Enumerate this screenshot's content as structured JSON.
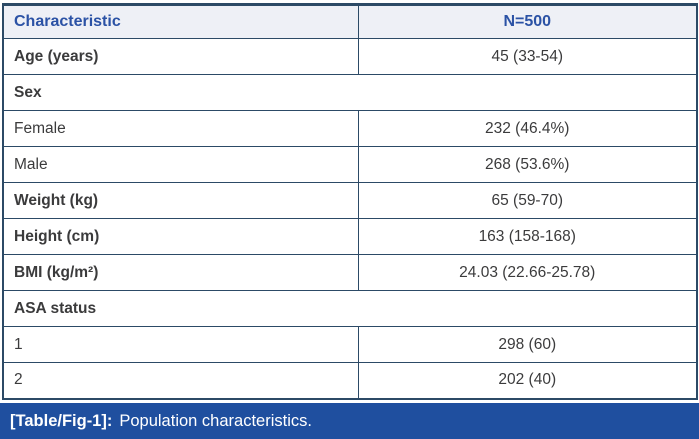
{
  "figure": {
    "header": {
      "col1": "Characteristic",
      "col2": "N=500"
    },
    "rows": [
      {
        "label": "Age (years)",
        "value": "45 (33-54)",
        "style": "bold"
      },
      {
        "label": "Sex",
        "style": "section"
      },
      {
        "label": "Female",
        "value": "232 (46.4%)",
        "style": "regular"
      },
      {
        "label": "Male",
        "value": "268 (53.6%)",
        "style": "regular"
      },
      {
        "label": "Weight (kg)",
        "value": "65 (59-70)",
        "style": "bold"
      },
      {
        "label": "Height (cm)",
        "value": "163 (158-168)",
        "style": "bold"
      },
      {
        "label": "BMI (kg/m²)",
        "value": "24.03 (22.66-25.78)",
        "style": "bold"
      },
      {
        "label": "ASA status",
        "style": "section"
      },
      {
        "label": "1",
        "value": "298 (60)",
        "style": "regular"
      },
      {
        "label": "2",
        "value": "202 (40)",
        "style": "regular"
      }
    ],
    "caption": {
      "tag": "[Table/Fig-1]:",
      "text": "Population characteristics."
    },
    "colors": {
      "border": "#2c4a66",
      "header_background": "#eef0f6",
      "header_text": "#2b52a5",
      "caption_background": "#1f4f9f",
      "caption_text": "#ffffff",
      "body_text": "#3b3b3c"
    }
  }
}
